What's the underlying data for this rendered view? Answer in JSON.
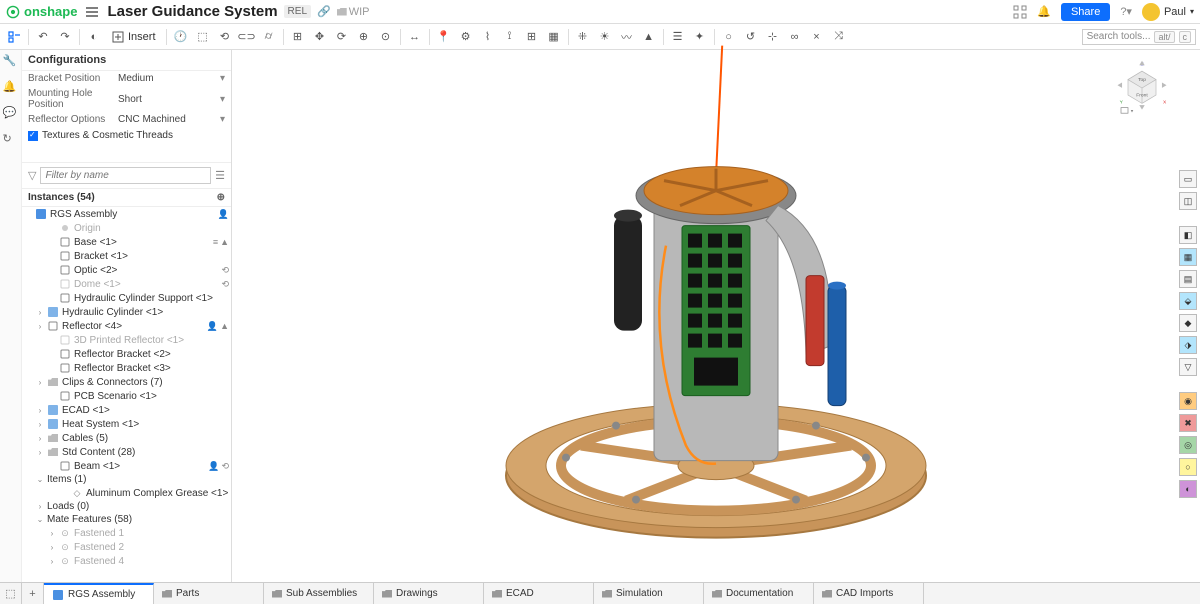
{
  "header": {
    "brand": "onshape",
    "doc_title": "Laser Guidance System",
    "rel_badge": "REL",
    "wip_label": "WIP",
    "share_label": "Share",
    "user_name": "Paul"
  },
  "toolbar": {
    "insert_label": "Insert",
    "search_placeholder": "Search tools...",
    "shortcut_alt": "alt/",
    "shortcut_c": "c"
  },
  "config": {
    "panel_title": "Configurations",
    "rows": [
      {
        "label": "Bracket Position",
        "value": "Medium"
      },
      {
        "label": "Mounting Hole Position",
        "value": "Short"
      },
      {
        "label": "Reflector Options",
        "value": "CNC Machined"
      }
    ],
    "checkbox_label": "Textures & Cosmetic Threads",
    "checkbox_checked": true
  },
  "filter": {
    "placeholder": "Filter by name"
  },
  "instances": {
    "header": "Instances (54)"
  },
  "tree": [
    {
      "type": "root",
      "label": "RGS Assembly",
      "icon": "assembly",
      "extra": [
        "person"
      ]
    },
    {
      "type": "item",
      "indent": 2,
      "label": "Origin",
      "muted": true,
      "icon": "dot"
    },
    {
      "type": "item",
      "indent": 2,
      "label": "Base <1>",
      "icon": "part",
      "extra": [
        "menu",
        "lock"
      ]
    },
    {
      "type": "item",
      "indent": 2,
      "label": "Bracket <1>",
      "icon": "part"
    },
    {
      "type": "item",
      "indent": 2,
      "label": "Optic <2>",
      "icon": "part",
      "extra": [
        "link"
      ]
    },
    {
      "type": "item",
      "indent": 2,
      "label": "Dome <1>",
      "icon": "part-muted",
      "muted": true,
      "extra": [
        "link"
      ]
    },
    {
      "type": "item",
      "indent": 2,
      "label": "Hydraulic Cylinder Support <1>",
      "icon": "part"
    },
    {
      "type": "item",
      "indent": 1,
      "label": "Hydraulic Cylinder <1>",
      "icon": "subasm",
      "chev": ">"
    },
    {
      "type": "item",
      "indent": 1,
      "label": "Reflector <4>",
      "icon": "part",
      "chev": ">",
      "extra": [
        "person",
        "lock"
      ]
    },
    {
      "type": "item",
      "indent": 2,
      "label": "3D Printed Reflector <1>",
      "icon": "part-muted",
      "muted": true
    },
    {
      "type": "item",
      "indent": 2,
      "label": "Reflector Bracket <2>",
      "icon": "part"
    },
    {
      "type": "item",
      "indent": 2,
      "label": "Reflector Bracket <3>",
      "icon": "part"
    },
    {
      "type": "item",
      "indent": 1,
      "label": "Clips & Connectors (7)",
      "icon": "folder",
      "chev": ">"
    },
    {
      "type": "item",
      "indent": 2,
      "label": "PCB Scenario <1>",
      "icon": "part"
    },
    {
      "type": "item",
      "indent": 1,
      "label": "ECAD <1>",
      "icon": "subasm",
      "chev": ">"
    },
    {
      "type": "item",
      "indent": 1,
      "label": "Heat System <1>",
      "icon": "subasm",
      "chev": ">"
    },
    {
      "type": "item",
      "indent": 1,
      "label": "Cables (5)",
      "icon": "folder",
      "chev": ">"
    },
    {
      "type": "item",
      "indent": 1,
      "label": "Std Content (28)",
      "icon": "folder",
      "chev": ">"
    },
    {
      "type": "item",
      "indent": 2,
      "label": "Beam <1>",
      "icon": "part",
      "extra": [
        "person",
        "link"
      ]
    },
    {
      "type": "section",
      "indent": 1,
      "label": "Items (1)",
      "chev": "v"
    },
    {
      "type": "item",
      "indent": 3,
      "label": "Aluminum Complex Grease <1>",
      "icon": "diamond"
    },
    {
      "type": "section",
      "indent": 1,
      "label": "Loads (0)",
      "chev": ">"
    },
    {
      "type": "section",
      "indent": 1,
      "label": "Mate Features (58)",
      "chev": "v"
    },
    {
      "type": "item",
      "indent": 2,
      "label": "Fastened 1",
      "icon": "mate",
      "muted": true,
      "chev": ">"
    },
    {
      "type": "item",
      "indent": 2,
      "label": "Fastened 2",
      "icon": "mate",
      "muted": true,
      "chev": ">"
    },
    {
      "type": "item",
      "indent": 2,
      "label": "Fastened 4",
      "icon": "mate",
      "muted": true,
      "chev": ">"
    }
  ],
  "viewcube": {
    "top": "Top",
    "front": "Front",
    "axes": [
      "X",
      "Y",
      "Z"
    ]
  },
  "tabs": [
    {
      "label": "RGS Assembly",
      "active": true,
      "icon": "assembly"
    },
    {
      "label": "Parts",
      "icon": "folder"
    },
    {
      "label": "Sub Assemblies",
      "icon": "folder"
    },
    {
      "label": "Drawings",
      "icon": "folder"
    },
    {
      "label": "ECAD",
      "icon": "folder"
    },
    {
      "label": "Simulation",
      "icon": "folder"
    },
    {
      "label": "Documentation",
      "icon": "folder"
    },
    {
      "label": "CAD Imports",
      "icon": "folder"
    }
  ],
  "colors": {
    "brass": "#c8945a",
    "brass_dark": "#a67840",
    "steel": "#b8b8b8",
    "steel_dark": "#888",
    "pcb": "#2e7d32",
    "pcb_dark": "#1b5e20",
    "copper": "#d4822b",
    "blue_cyl": "#1e5faa",
    "red_cyl": "#c23b2e",
    "laser": "#ff5500"
  }
}
